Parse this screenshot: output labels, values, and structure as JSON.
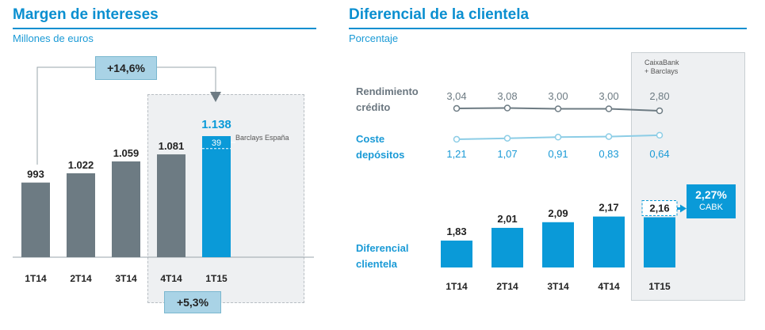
{
  "left": {
    "title": "Margen de intereses",
    "subtitle": "Millones de euros",
    "growth_badge": "+14,6%",
    "quarter_badge": "+5,3%",
    "barclays_note": "Barclays España",
    "colors": {
      "bar": "#6d7b83",
      "highlight": "#0a9ad8",
      "shade": "#eef0f2",
      "badge": "#a9d3e6"
    }
  },
  "right": {
    "title": "Diferencial de la clientela",
    "subtitle": "Porcentaje",
    "shaded_note_line1": "CaixaBank",
    "shaded_note_line2": "+ Barclays",
    "rendimiento_label_line1": "Rendimiento",
    "rendimiento_label_line2": "crédito",
    "coste_label_line1": "Coste",
    "coste_label_line2": "depósitos",
    "diferencial_label_line1": "Diferencial",
    "diferencial_label_line2": "clientela",
    "cabk_value": "2,27%",
    "cabk_label": "CABK"
  },
  "chart_data": [
    {
      "type": "bar",
      "title": "Margen de intereses",
      "ylabel": "Millones de euros",
      "categories": [
        "1T14",
        "2T14",
        "3T14",
        "4T14",
        "1T15"
      ],
      "values": [
        993,
        1022,
        1059,
        1081,
        1138
      ],
      "labels": [
        "993",
        "1.022",
        "1.059",
        "1.081",
        "1.138"
      ],
      "barclays_contribution": 39,
      "barclays_label": "39",
      "ylim": [
        760,
        1180
      ]
    },
    {
      "type": "line",
      "title": "Diferencial de la clientela",
      "categories": [
        "1T14",
        "2T14",
        "3T14",
        "4T14",
        "1T15"
      ],
      "series": [
        {
          "name": "Rendimiento crédito",
          "values": [
            3.04,
            3.08,
            3.0,
            3.0,
            2.8
          ],
          "labels": [
            "3,04",
            "3,08",
            "3,00",
            "3,00",
            "2,80"
          ]
        },
        {
          "name": "Coste depósitos",
          "values": [
            1.21,
            1.07,
            0.91,
            0.83,
            0.64
          ],
          "labels": [
            "1,21",
            "1,07",
            "0,91",
            "0,83",
            "0,64"
          ]
        }
      ]
    },
    {
      "type": "bar",
      "title": "Diferencial clientela",
      "categories": [
        "1T14",
        "2T14",
        "3T14",
        "4T14",
        "1T15"
      ],
      "values": [
        1.83,
        2.01,
        2.09,
        2.17,
        2.16
      ],
      "labels": [
        "1,83",
        "2,01",
        "2,09",
        "2,17",
        "2,16"
      ],
      "ylim": [
        1.45,
        2.3
      ]
    }
  ]
}
